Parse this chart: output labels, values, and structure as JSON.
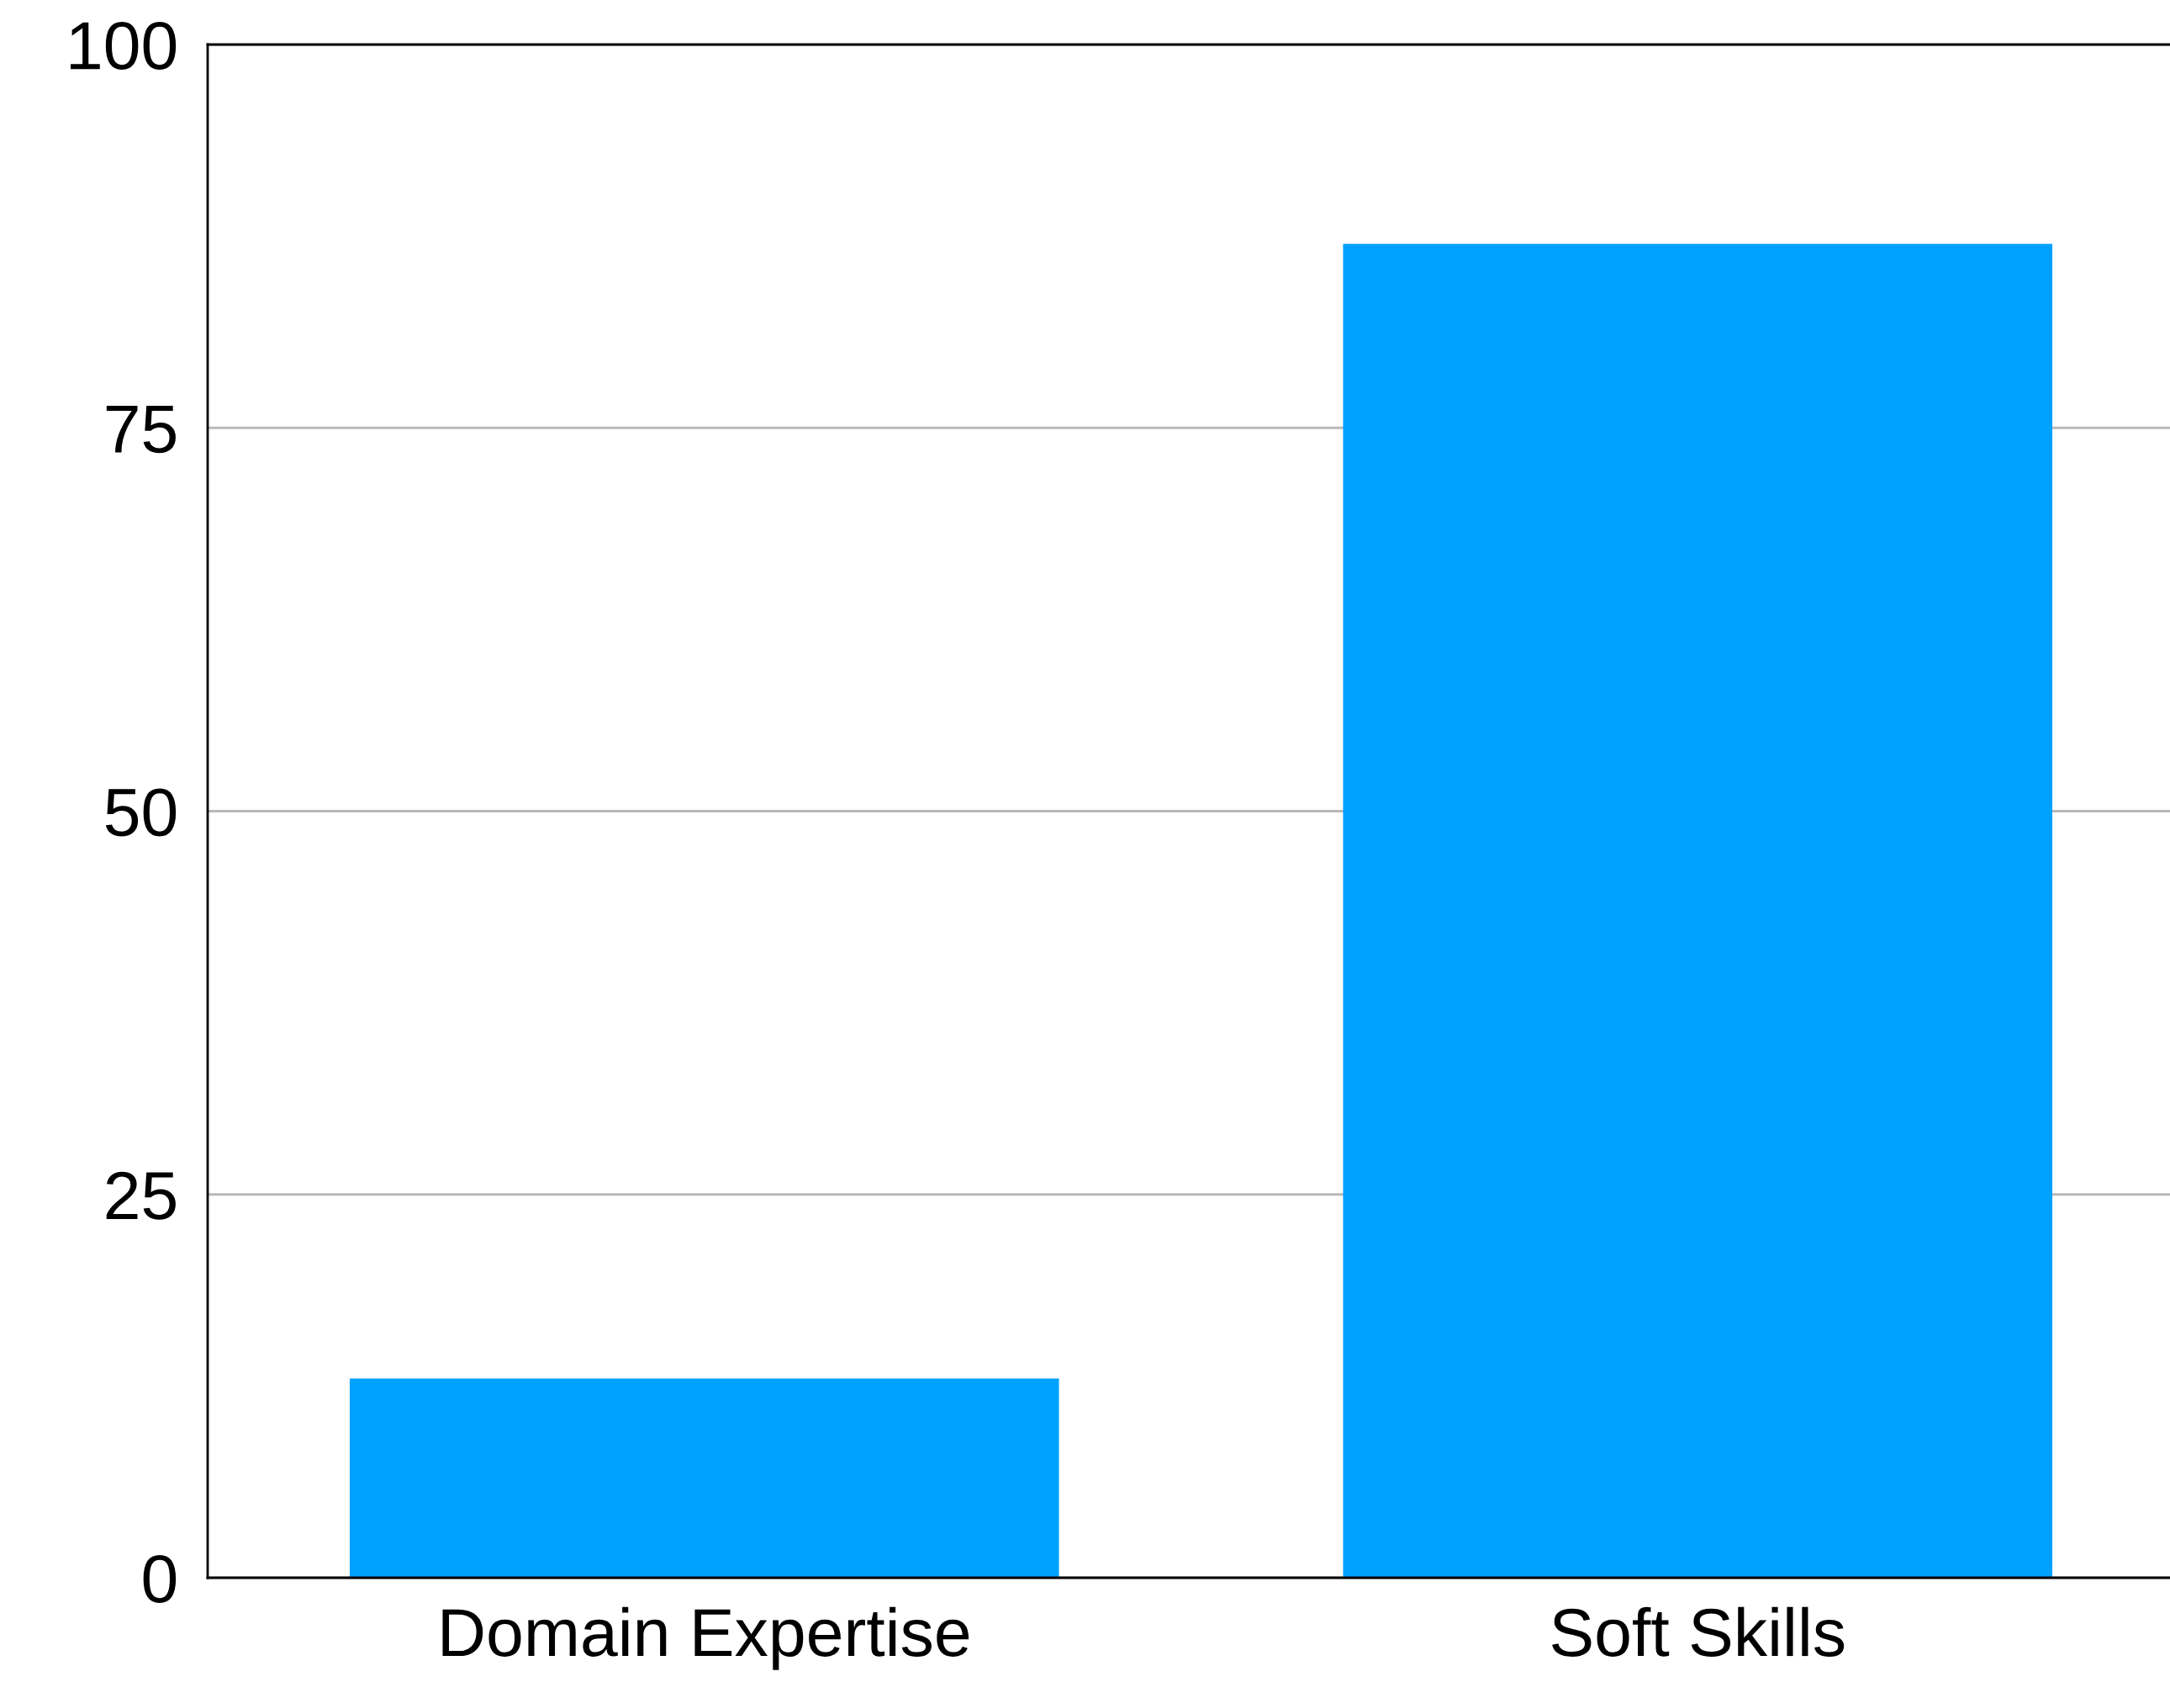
{
  "chart_data": {
    "type": "bar",
    "categories": [
      "Domain Expertise",
      "Soft Skills"
    ],
    "values": [
      13,
      87
    ],
    "color": "#00a2ff",
    "ylim": [
      0,
      100
    ],
    "yticks": [
      0,
      25,
      50,
      75,
      100
    ],
    "grid": "y"
  }
}
